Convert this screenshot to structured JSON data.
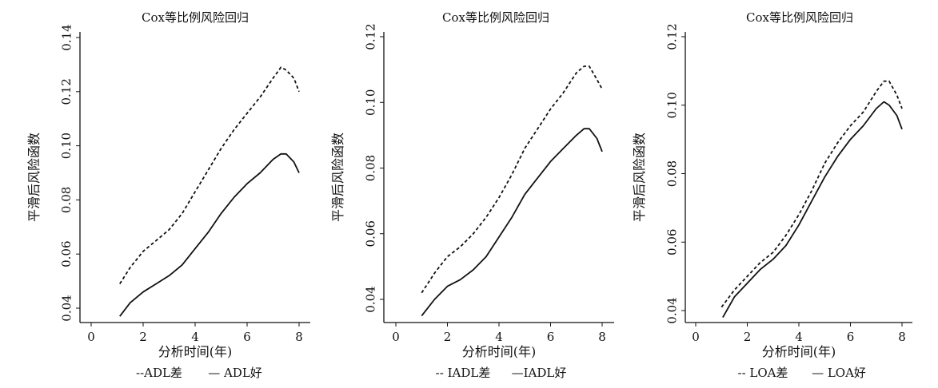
{
  "chart_data": [
    {
      "type": "line",
      "title": "Cox等比例风险回归",
      "xlabel": "分析时间(年)",
      "ylabel": "平滑后风险函数",
      "xlim": [
        0,
        8
      ],
      "ylim": [
        0.04,
        0.14
      ],
      "xticks": [
        "0",
        "2",
        "4",
        "6",
        "8"
      ],
      "yticks": [
        "0.04",
        "0.06",
        "0.08",
        "0.10",
        "0.12",
        "0.14"
      ],
      "legend": [
        "--ADL差",
        "— ADL好"
      ],
      "grid": false,
      "series": [
        {
          "name": "ADL差",
          "style": "dashed",
          "x": [
            1.1,
            1.5,
            2,
            2.5,
            3,
            3.5,
            4,
            4.5,
            5,
            5.5,
            6,
            6.5,
            7,
            7.3,
            7.5,
            7.8,
            8
          ],
          "y": [
            0.049,
            0.055,
            0.061,
            0.065,
            0.069,
            0.075,
            0.083,
            0.091,
            0.099,
            0.106,
            0.112,
            0.118,
            0.125,
            0.129,
            0.128,
            0.125,
            0.12
          ]
        },
        {
          "name": "ADL好",
          "style": "solid",
          "x": [
            1.1,
            1.5,
            2,
            2.5,
            3,
            3.5,
            4,
            4.5,
            5,
            5.5,
            6,
            6.5,
            7,
            7.3,
            7.5,
            7.8,
            8
          ],
          "y": [
            0.037,
            0.042,
            0.046,
            0.049,
            0.052,
            0.056,
            0.062,
            0.068,
            0.075,
            0.081,
            0.086,
            0.09,
            0.095,
            0.097,
            0.097,
            0.094,
            0.09
          ]
        }
      ]
    },
    {
      "type": "line",
      "title": "Cox等比例风险回归",
      "xlabel": "分析时间(年)",
      "ylabel": "平滑后风险函数",
      "xlim": [
        0,
        8
      ],
      "ylim": [
        0.04,
        0.12
      ],
      "xticks": [
        "0",
        "2",
        "4",
        "6",
        "8"
      ],
      "yticks": [
        "0.04",
        "0.06",
        "0.08",
        "0.10",
        "0.12"
      ],
      "legend": [
        "-- IADL差",
        "—IADL好"
      ],
      "grid": false,
      "series": [
        {
          "name": "IADL差",
          "style": "dashed",
          "x": [
            1.0,
            1.5,
            2,
            2.5,
            3,
            3.5,
            4,
            4.5,
            5,
            5.5,
            6,
            6.5,
            7,
            7.3,
            7.5,
            7.8,
            8
          ],
          "y": [
            0.042,
            0.048,
            0.053,
            0.056,
            0.06,
            0.065,
            0.071,
            0.078,
            0.086,
            0.092,
            0.098,
            0.103,
            0.109,
            0.111,
            0.111,
            0.107,
            0.104
          ]
        },
        {
          "name": "IADL好",
          "style": "solid",
          "x": [
            1.0,
            1.5,
            2,
            2.5,
            3,
            3.5,
            4,
            4.5,
            5,
            5.5,
            6,
            6.5,
            7,
            7.3,
            7.5,
            7.8,
            8
          ],
          "y": [
            0.035,
            0.04,
            0.044,
            0.046,
            0.049,
            0.053,
            0.059,
            0.065,
            0.072,
            0.077,
            0.082,
            0.086,
            0.09,
            0.092,
            0.092,
            0.089,
            0.085
          ]
        }
      ]
    },
    {
      "type": "line",
      "title": "Cox等比例风险回归",
      "xlabel": "分析时间(年)",
      "ylabel": "平滑后风险函数",
      "xlim": [
        0,
        8
      ],
      "ylim": [
        0.04,
        0.12
      ],
      "xticks": [
        "0",
        "2",
        "4",
        "6",
        "8"
      ],
      "yticks": [
        "0.04",
        "0.06",
        "0.08",
        "0.10",
        "0.12"
      ],
      "legend": [
        "-- LOA差",
        "— LOA好"
      ],
      "grid": false,
      "series": [
        {
          "name": "LOA差",
          "style": "dashed",
          "x": [
            1.0,
            1.5,
            2,
            2.5,
            3,
            3.5,
            4,
            4.5,
            5,
            5.5,
            6,
            6.5,
            7,
            7.3,
            7.5,
            7.8,
            8
          ],
          "y": [
            0.041,
            0.046,
            0.05,
            0.054,
            0.057,
            0.062,
            0.068,
            0.075,
            0.083,
            0.089,
            0.094,
            0.098,
            0.104,
            0.107,
            0.107,
            0.103,
            0.099
          ]
        },
        {
          "name": "LOA好",
          "style": "solid",
          "x": [
            1.05,
            1.5,
            2,
            2.5,
            3,
            3.5,
            4,
            4.5,
            5,
            5.5,
            6,
            6.5,
            7,
            7.3,
            7.5,
            7.8,
            8
          ],
          "y": [
            0.038,
            0.044,
            0.048,
            0.052,
            0.055,
            0.059,
            0.065,
            0.072,
            0.079,
            0.085,
            0.09,
            0.094,
            0.099,
            0.101,
            0.1,
            0.097,
            0.093
          ]
        }
      ]
    }
  ]
}
